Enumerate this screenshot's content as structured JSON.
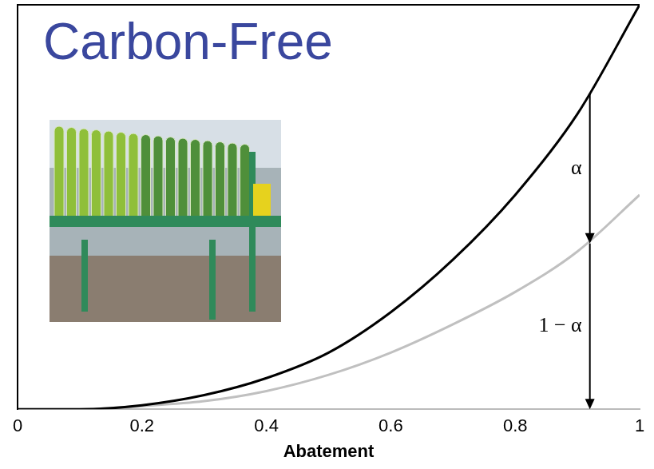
{
  "chart_data": {
    "type": "line",
    "title": "Carbon-Free",
    "x_label": "Abatement",
    "x": [
      0,
      0.1,
      0.2,
      0.3,
      0.4,
      0.5,
      0.6,
      0.7,
      0.8,
      0.9,
      1
    ],
    "series": [
      {
        "color": "#000000",
        "values": [
          0,
          0,
          0.01,
          0.035,
          0.077,
          0.14,
          0.24,
          0.37,
          0.53,
          0.73,
          1.0
        ]
      },
      {
        "color": "#c0c0c0",
        "values": [
          0,
          0,
          0.008,
          0.02,
          0.045,
          0.085,
          0.14,
          0.21,
          0.29,
          0.39,
          0.53
        ]
      }
    ],
    "xlim": [
      0,
      1
    ],
    "xticks": [
      0,
      0.2,
      0.4,
      0.6,
      0.8,
      1
    ],
    "ylim": [
      0,
      1
    ],
    "tick_labels": "x",
    "grid": false,
    "annotations": [
      {
        "text": "α",
        "x": 0.92,
        "y_from": 0.78,
        "y_to": 0.41
      },
      {
        "text": "1 − α",
        "x": 0.92,
        "y_from": 0.41,
        "y_to": 0
      }
    ]
  }
}
